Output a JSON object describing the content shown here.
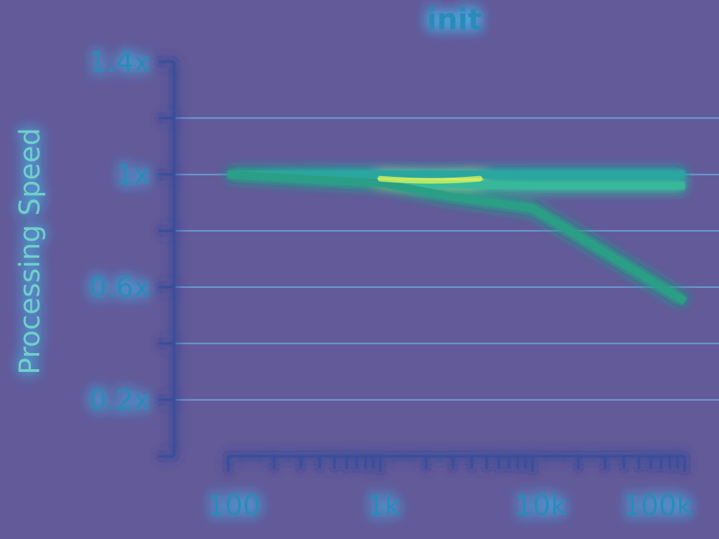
{
  "chart_data": {
    "type": "line",
    "title": "init",
    "xlabel": "",
    "ylabel": "Processing Speed",
    "x_scale": "log",
    "xlim": [
      100,
      100000
    ],
    "ylim": [
      0,
      1.4
    ],
    "x_ticks": [
      {
        "value": 100,
        "label": "100"
      },
      {
        "value": 1000,
        "label": "1k"
      },
      {
        "value": 10000,
        "label": "10k"
      },
      {
        "value": 100000,
        "label": "100k"
      }
    ],
    "y_ticks": [
      {
        "value": 0.2,
        "label": "0.2x"
      },
      {
        "value": 0.6,
        "label": "0.6x"
      },
      {
        "value": 1.0,
        "label": "1x"
      },
      {
        "value": 1.4,
        "label": "1.4x"
      }
    ],
    "y_minor_ticks": [
      0.0,
      0.4,
      0.8,
      1.2
    ],
    "grid": true,
    "series": [
      {
        "x": [
          100,
          1000,
          10000,
          100000
        ],
        "y": [
          1.0,
          1.0,
          1.0,
          1.0
        ],
        "color": "#2aa6a0"
      },
      {
        "x": [
          100,
          1000,
          10000,
          100000
        ],
        "y": [
          1.0,
          0.97,
          0.96,
          0.96
        ],
        "color": "#38b89a"
      },
      {
        "x": [
          100,
          1000,
          3000,
          10000,
          100000
        ],
        "y": [
          1.0,
          0.97,
          0.92,
          0.88,
          0.55
        ],
        "color": "#2a9f86"
      }
    ]
  }
}
